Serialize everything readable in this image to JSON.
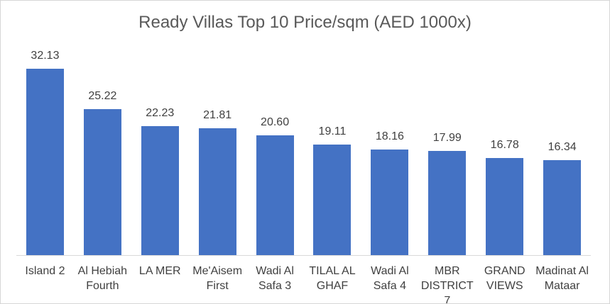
{
  "chart_data": {
    "type": "bar",
    "title": "Ready Villas Top 10 Price/sqm (AED 1000x)",
    "categories": [
      "Island 2",
      "Al Hebiah Fourth",
      "LA MER",
      "Me'Aisem First",
      "Wadi Al Safa 3",
      "TILAL AL GHAF",
      "Wadi Al Safa 4",
      "MBR DISTRICT 7",
      "GRAND VIEWS",
      "Madinat Al Mataar"
    ],
    "values": [
      32.13,
      25.22,
      22.23,
      21.81,
      20.6,
      19.11,
      18.16,
      17.99,
      16.78,
      16.34
    ],
    "data_labels": [
      "32.13",
      "25.22",
      "22.23",
      "21.81",
      "20.60",
      "19.11",
      "18.16",
      "17.99",
      "16.78",
      "16.34"
    ],
    "xlabel": "",
    "ylabel": "",
    "ylim": [
      0,
      33
    ],
    "grid": false,
    "legend": false,
    "layout": {
      "bar_color": "#4472C4",
      "title_color": "#595959",
      "label_color": "#404040",
      "axis_line_color": "#D9D9D9",
      "border_color": "#D6D6D6",
      "background": "#FFFFFF",
      "data_labels_position": "above-bars"
    }
  }
}
